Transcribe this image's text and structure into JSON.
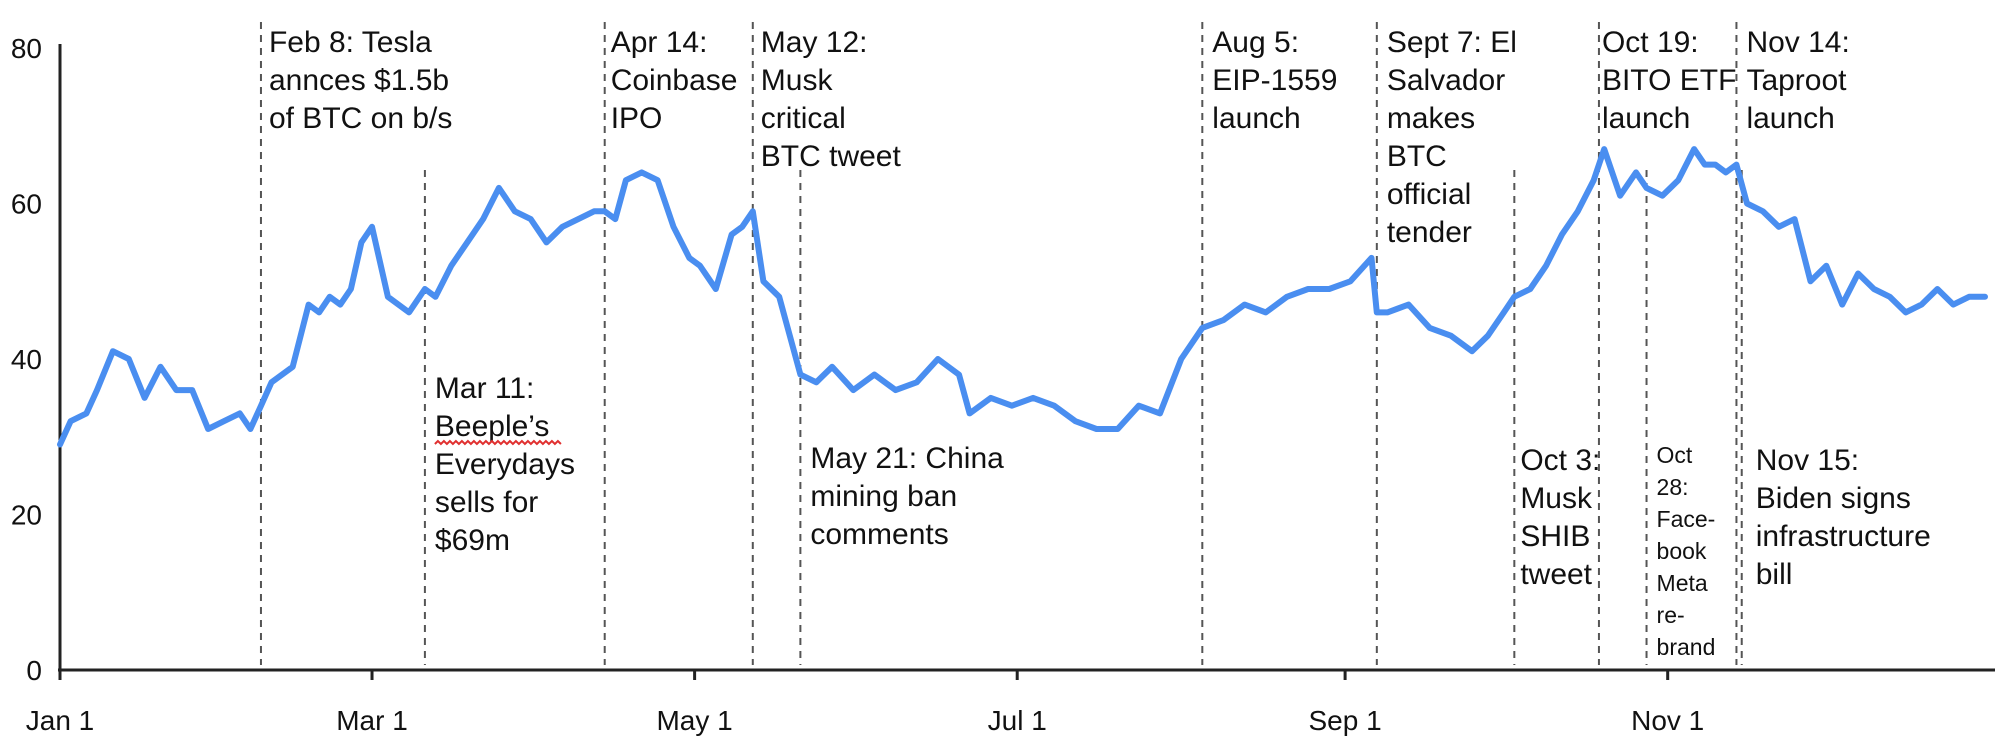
{
  "chart_data": {
    "type": "line",
    "title": "",
    "xlabel": "",
    "ylabel": "",
    "ylim": [
      0,
      80
    ],
    "yticks": [
      0,
      20,
      40,
      60,
      80
    ],
    "xticks": [
      {
        "date": "2021-01-01",
        "label": "Jan 1"
      },
      {
        "date": "2021-03-01",
        "label": "Mar 1"
      },
      {
        "date": "2021-05-01",
        "label": "May 1"
      },
      {
        "date": "2021-07-01",
        "label": "Jul 1"
      },
      {
        "date": "2021-09-01",
        "label": "Sep 1"
      },
      {
        "date": "2021-11-01",
        "label": "Nov 1"
      }
    ],
    "grid": false,
    "line_color": "#4a8ef0",
    "series": [
      {
        "x": [
          "2021-01-01",
          "2021-01-03",
          "2021-01-06",
          "2021-01-08",
          "2021-01-11",
          "2021-01-14",
          "2021-01-17",
          "2021-01-20",
          "2021-01-23",
          "2021-01-26",
          "2021-01-29",
          "2021-02-01",
          "2021-02-04",
          "2021-02-06",
          "2021-02-08",
          "2021-02-10",
          "2021-02-12",
          "2021-02-14",
          "2021-02-17",
          "2021-02-19",
          "2021-02-21",
          "2021-02-23",
          "2021-02-25",
          "2021-02-27",
          "2021-03-01",
          "2021-03-04",
          "2021-03-08",
          "2021-03-11",
          "2021-03-13",
          "2021-03-16",
          "2021-03-19",
          "2021-03-22",
          "2021-03-25",
          "2021-03-28",
          "2021-03-31",
          "2021-04-03",
          "2021-04-06",
          "2021-04-09",
          "2021-04-12",
          "2021-04-14",
          "2021-04-16",
          "2021-04-18",
          "2021-04-21",
          "2021-04-24",
          "2021-04-27",
          "2021-04-30",
          "2021-05-02",
          "2021-05-05",
          "2021-05-08",
          "2021-05-10",
          "2021-05-12",
          "2021-05-14",
          "2021-05-17",
          "2021-05-19",
          "2021-05-21",
          "2021-05-24",
          "2021-05-27",
          "2021-05-31",
          "2021-06-04",
          "2021-06-08",
          "2021-06-12",
          "2021-06-16",
          "2021-06-20",
          "2021-06-22",
          "2021-06-26",
          "2021-06-30",
          "2021-07-04",
          "2021-07-08",
          "2021-07-12",
          "2021-07-16",
          "2021-07-20",
          "2021-07-24",
          "2021-07-28",
          "2021-08-01",
          "2021-08-05",
          "2021-08-09",
          "2021-08-13",
          "2021-08-17",
          "2021-08-21",
          "2021-08-25",
          "2021-08-29",
          "2021-09-02",
          "2021-09-06",
          "2021-09-07",
          "2021-09-09",
          "2021-09-13",
          "2021-09-17",
          "2021-09-21",
          "2021-09-25",
          "2021-09-28",
          "2021-10-01",
          "2021-10-03",
          "2021-10-06",
          "2021-10-09",
          "2021-10-12",
          "2021-10-15",
          "2021-10-18",
          "2021-10-20",
          "2021-10-23",
          "2021-10-26",
          "2021-10-28",
          "2021-10-31",
          "2021-11-03",
          "2021-11-06",
          "2021-11-08",
          "2021-11-10",
          "2021-11-12",
          "2021-11-14",
          "2021-11-16",
          "2021-11-19",
          "2021-11-22",
          "2021-11-25",
          "2021-11-28",
          "2021-12-01",
          "2021-12-04",
          "2021-12-07",
          "2021-12-10",
          "2021-12-13",
          "2021-12-16",
          "2021-12-19",
          "2021-12-22",
          "2021-12-25",
          "2021-12-28",
          "2021-12-31"
        ],
        "values": [
          29,
          32,
          33,
          36,
          41,
          40,
          35,
          39,
          36,
          36,
          31,
          32,
          33,
          31,
          34,
          37,
          38,
          39,
          47,
          46,
          48,
          47,
          49,
          55,
          57,
          48,
          46,
          49,
          48,
          52,
          55,
          58,
          62,
          59,
          58,
          55,
          57,
          58,
          59,
          59,
          58,
          63,
          64,
          63,
          57,
          53,
          52,
          49,
          56,
          57,
          59,
          50,
          48,
          43,
          38,
          37,
          39,
          36,
          38,
          36,
          37,
          40,
          38,
          33,
          35,
          34,
          35,
          34,
          32,
          31,
          31,
          34,
          33,
          40,
          44,
          45,
          47,
          46,
          48,
          49,
          49,
          50,
          53,
          46,
          46,
          47,
          44,
          43,
          41,
          43,
          46,
          48,
          49,
          52,
          56,
          59,
          63,
          67,
          61,
          64,
          62,
          61,
          63,
          67,
          65,
          65,
          64,
          65,
          60,
          59,
          57,
          58,
          50,
          52,
          47,
          51,
          49,
          48,
          46,
          47,
          49,
          47,
          48,
          48
        ]
      }
    ],
    "events": [
      {
        "date": "2021-02-08",
        "lines": [
          "Feb 8: Tesla",
          "annces $1.5b",
          "of BTC on b/s"
        ],
        "pos": "top"
      },
      {
        "date": "2021-03-11",
        "lines": [
          "Mar 11:",
          "Beeple’s",
          "Everydays",
          "sells for",
          "$69m"
        ],
        "pos": "bottom"
      },
      {
        "date": "2021-04-14",
        "lines": [
          "Apr 14:",
          "Coinbase",
          "IPO"
        ],
        "pos": "top"
      },
      {
        "date": "2021-05-12",
        "lines": [
          "May 12:",
          "Musk",
          "critical",
          "BTC tweet"
        ],
        "pos": "top"
      },
      {
        "date": "2021-05-21",
        "lines": [
          "May 21: China",
          "mining ban",
          "comments"
        ],
        "pos": "bottom"
      },
      {
        "date": "2021-08-05",
        "lines": [
          "Aug 5:",
          "EIP-1559",
          "launch"
        ],
        "pos": "top"
      },
      {
        "date": "2021-09-07",
        "lines": [
          "Sept 7: El",
          "Salvador",
          "makes",
          "BTC",
          "official",
          "tender"
        ],
        "pos": "top"
      },
      {
        "date": "2021-10-03",
        "lines": [
          "Oct 3:",
          "Musk",
          "SHIB",
          "tweet"
        ],
        "pos": "bottom"
      },
      {
        "date": "2021-10-19",
        "lines": [
          "Oct 19:",
          "BITO ETF",
          "launch"
        ],
        "pos": "top"
      },
      {
        "date": "2021-10-28",
        "lines": [
          "Oct",
          "28:",
          "Face-",
          "book",
          "Meta",
          "re-",
          "brand"
        ],
        "pos": "bottom"
      },
      {
        "date": "2021-11-14",
        "lines": [
          "Nov 14:",
          "Taproot",
          "launch"
        ],
        "pos": "top"
      },
      {
        "date": "2021-11-15",
        "lines": [
          "Nov 15:",
          "Biden signs",
          "infrastructure",
          "bill"
        ],
        "pos": "bottom"
      }
    ]
  }
}
